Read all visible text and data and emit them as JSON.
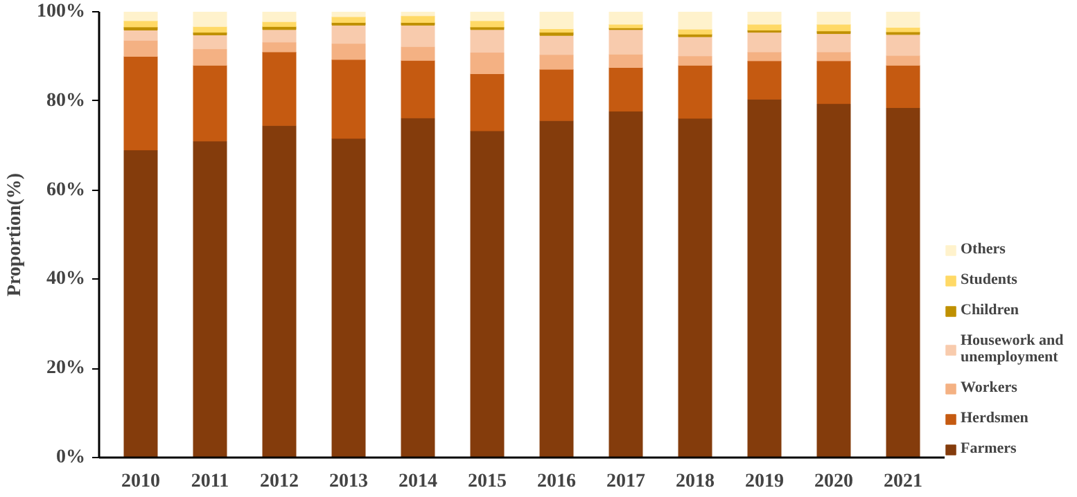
{
  "chart_data": {
    "type": "bar",
    "stacked": true,
    "ylabel": "Proportion(%)",
    "categories": [
      "2010",
      "2011",
      "2012",
      "2013",
      "2014",
      "2015",
      "2016",
      "2017",
      "2018",
      "2019",
      "2020",
      "2021"
    ],
    "ylim": [
      0,
      100
    ],
    "yticks": [
      {
        "value": 0,
        "label": "0%"
      },
      {
        "value": 20,
        "label": "20%"
      },
      {
        "value": 40,
        "label": "40%"
      },
      {
        "value": 60,
        "label": "60%"
      },
      {
        "value": 80,
        "label": "80%"
      },
      {
        "value": 100,
        "label": "100%"
      }
    ],
    "grid": false,
    "legend": "right",
    "series": [
      {
        "name": "Farmers",
        "color": "#843c0c",
        "values": [
          69.0,
          71.0,
          74.5,
          71.6,
          76.2,
          73.3,
          75.6,
          77.7,
          76.1,
          80.4,
          79.4,
          78.5
        ]
      },
      {
        "name": "Herdsmen",
        "color": "#c55a11",
        "values": [
          21.0,
          17.0,
          16.5,
          17.7,
          12.9,
          12.8,
          11.5,
          9.8,
          11.9,
          8.6,
          9.6,
          9.5
        ]
      },
      {
        "name": "Workers",
        "color": "#f4b183",
        "values": [
          3.6,
          3.7,
          2.2,
          3.6,
          3.1,
          4.8,
          3.3,
          3.0,
          2.1,
          2.0,
          2.0,
          2.2
        ]
      },
      {
        "name": "Housework and unemployment",
        "color": "#f8cbad",
        "values": [
          2.3,
          3.1,
          2.8,
          4.1,
          4.8,
          5.1,
          4.3,
          5.5,
          4.3,
          4.4,
          4.1,
          4.7
        ]
      },
      {
        "name": "Children",
        "color": "#bf9000",
        "values": [
          0.7,
          0.6,
          0.7,
          0.6,
          0.6,
          0.6,
          0.7,
          0.4,
          0.6,
          0.5,
          0.6,
          0.6
        ]
      },
      {
        "name": "Students",
        "color": "#ffd966",
        "values": [
          1.4,
          1.3,
          1.1,
          1.3,
          1.5,
          1.4,
          0.8,
          0.8,
          1.1,
          1.3,
          1.5,
          1.0
        ]
      },
      {
        "name": "Others",
        "color": "#fff2cc",
        "values": [
          2.0,
          3.3,
          2.2,
          1.1,
          0.9,
          2.0,
          3.8,
          2.8,
          3.9,
          2.8,
          2.8,
          3.5
        ]
      }
    ]
  }
}
